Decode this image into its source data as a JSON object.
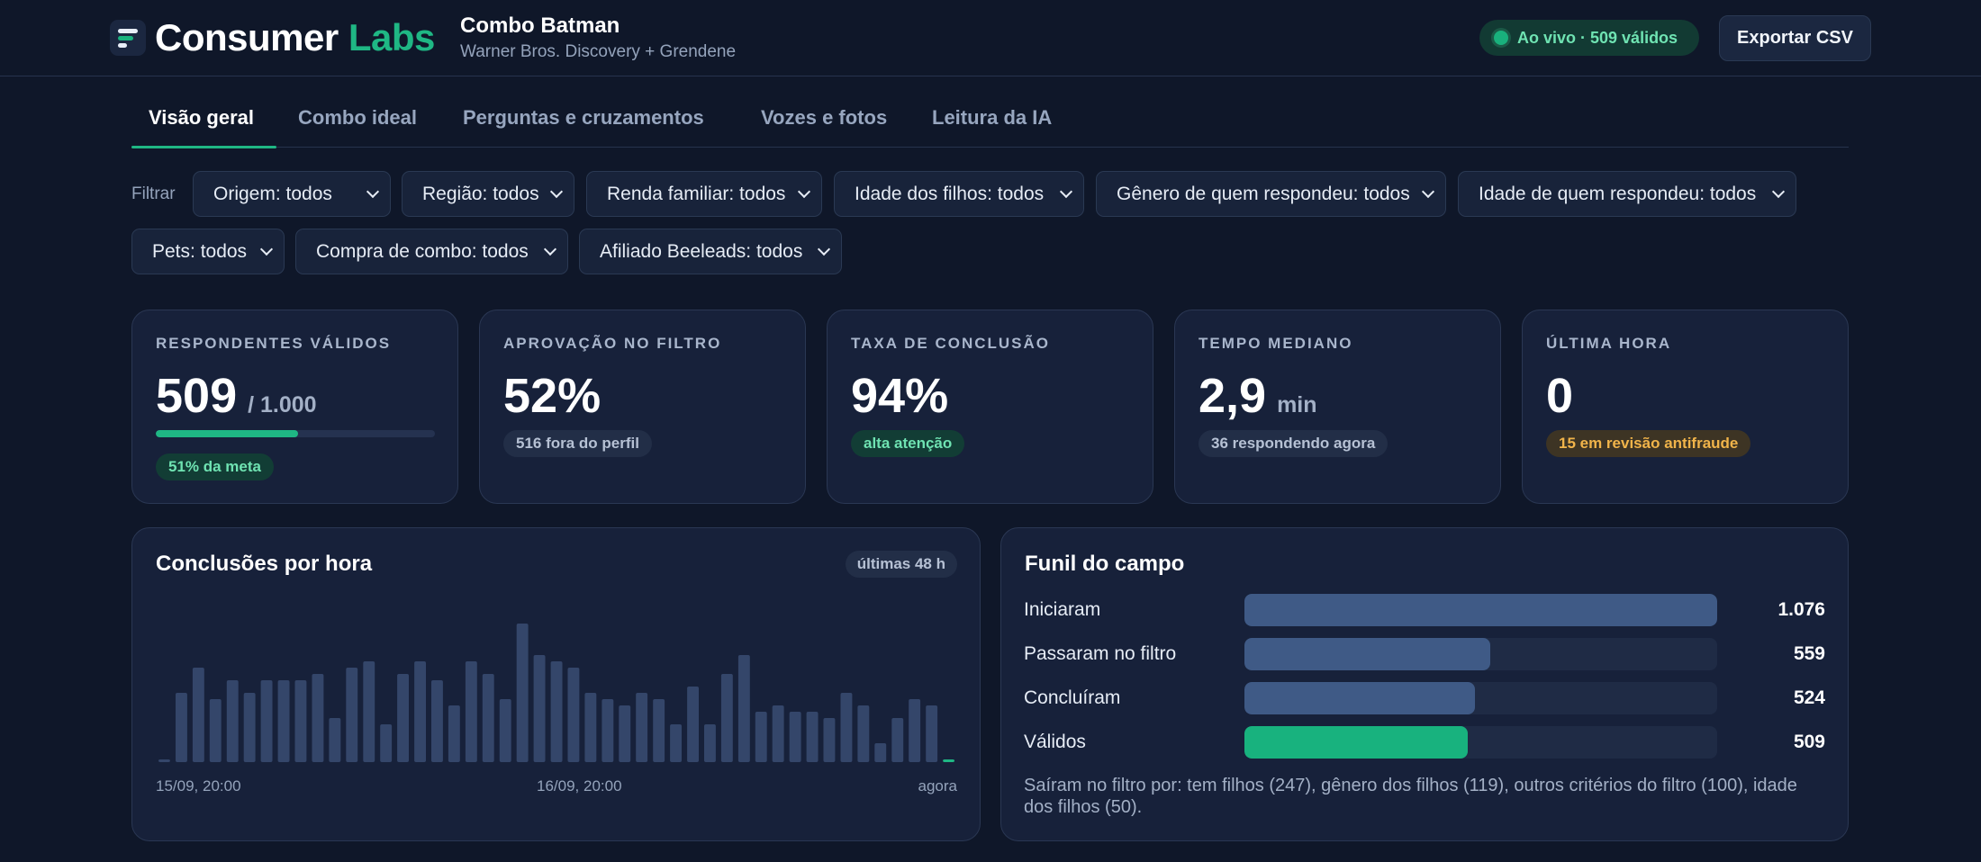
{
  "header": {
    "brand_left": "Consumer",
    "brand_right": "Labs",
    "project_title": "Combo Batman",
    "project_subtitle": "Warner Bros. Discovery + Grendene",
    "live_status": "Ao vivo · 509 válidos",
    "export_label": "Exportar CSV"
  },
  "tabs": [
    "Visão geral",
    "Combo ideal",
    "Perguntas e cruzamentos",
    "Vozes e fotos",
    "Leitura da IA"
  ],
  "filters": {
    "label": "Filtrar",
    "selects": [
      "Origem: todos",
      "Região: todos",
      "Renda familiar: todos",
      "Idade dos filhos: todos",
      "Gênero de quem respondeu: todos",
      "Idade de quem respondeu: todos",
      "Pets: todos",
      "Compra de combo: todos",
      "Afiliado Beeleads: todos"
    ]
  },
  "kpis": [
    {
      "label": "RESPONDENTES VÁLIDOS",
      "value": "509",
      "unit": "/ 1.000",
      "progress": 0.51,
      "badge": "51% da meta",
      "badge_tone": "green"
    },
    {
      "label": "APROVAÇÃO NO FILTRO",
      "value": "52%",
      "unit": "",
      "badge": "516 fora do perfil",
      "badge_tone": "gray"
    },
    {
      "label": "TAXA DE CONCLUSÃO",
      "value": "94%",
      "unit": "",
      "badge": "alta atenção",
      "badge_tone": "green"
    },
    {
      "label": "TEMPO MEDIANO",
      "value": "2,9",
      "unit": "min",
      "badge": "36 respondendo agora",
      "badge_tone": "gray"
    },
    {
      "label": "ÚLTIMA HORA",
      "value": "0",
      "unit": "",
      "badge": "15 em revisão antifraude",
      "badge_tone": "orange"
    }
  ],
  "hourly": {
    "title": "Conclusões por hora",
    "range": "últimas 48 h",
    "x_labels": [
      "15/09, 20:00",
      "16/09, 20:00",
      "agora"
    ]
  },
  "chart_data": {
    "type": "bar",
    "title": "Conclusões por hora",
    "xlabel": "",
    "ylabel": "",
    "values": [
      0,
      11,
      15,
      10,
      13,
      11,
      13,
      13,
      13,
      14,
      7,
      15,
      16,
      6,
      14,
      16,
      13,
      9,
      16,
      14,
      10,
      22,
      17,
      16,
      15,
      11,
      10,
      9,
      11,
      10,
      6,
      12,
      6,
      14,
      17,
      8,
      9,
      8,
      8,
      7,
      11,
      9,
      3,
      7,
      10,
      9,
      0
    ],
    "highlight_last": true,
    "ylim": [
      0,
      24
    ]
  },
  "funnel": {
    "title": "Funil do campo",
    "rows": [
      {
        "label": "Iniciaram",
        "value": "1.076",
        "n": 1076
      },
      {
        "label": "Passaram no filtro",
        "value": "559",
        "n": 559
      },
      {
        "label": "Concluíram",
        "value": "524",
        "n": 524
      },
      {
        "label": "Válidos",
        "value": "509",
        "n": 509
      }
    ],
    "note": "Saíram no filtro por: tem filhos (247), gênero dos filhos (119), outros critérios do filtro (100), idade dos filhos (50)."
  },
  "colors": {
    "accent": "#1fb784",
    "bar": "#34466a",
    "funnel_bar": "#3f5a86",
    "warning": "#f1b44a"
  }
}
